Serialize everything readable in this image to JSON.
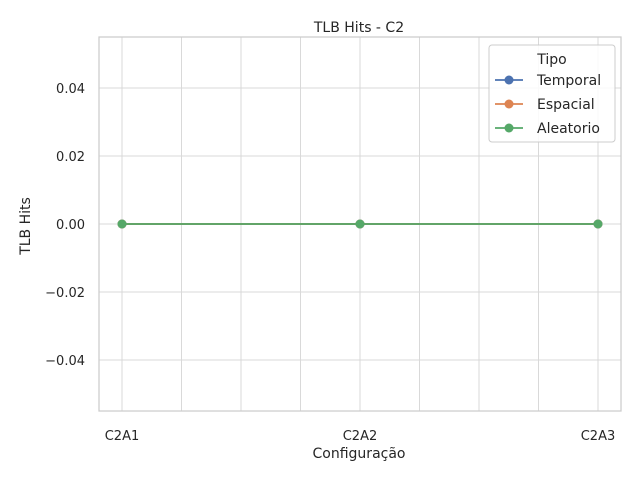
{
  "chart_data": {
    "type": "line",
    "title": "TLB Hits - C2",
    "xlabel": "Configuração",
    "ylabel": "TLB Hits",
    "categories": [
      "C2A1",
      "C2A2",
      "C2A3"
    ],
    "ylim": [
      -0.055,
      0.055
    ],
    "yticks": [
      -0.04,
      -0.02,
      0.0,
      0.02,
      0.04
    ],
    "ytick_labels": [
      "−0.04",
      "−0.02",
      "0.00",
      "0.02",
      "0.04"
    ],
    "grid": true,
    "legend": {
      "title": "Tipo",
      "placement": "top-right"
    },
    "series": [
      {
        "name": "Temporal",
        "values": [
          0,
          0,
          0
        ],
        "color": "#4c72b0"
      },
      {
        "name": "Espacial",
        "values": [
          0,
          0,
          0
        ],
        "color": "#dd8452"
      },
      {
        "name": "Aleatorio",
        "values": [
          0,
          0,
          0
        ],
        "color": "#55a868"
      }
    ]
  }
}
